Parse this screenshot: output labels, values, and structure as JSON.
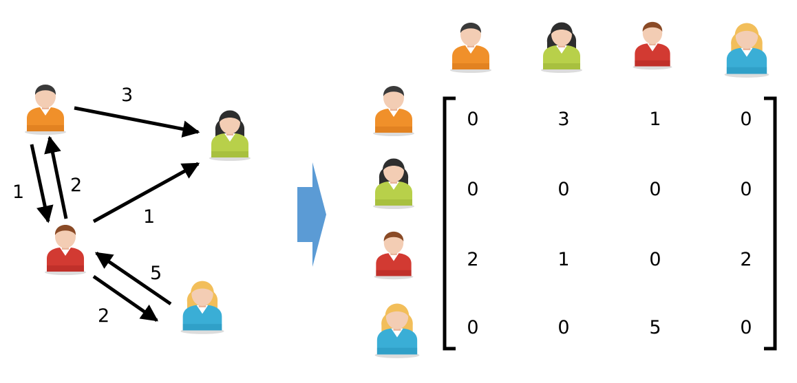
{
  "people": [
    {
      "id": "orange",
      "shirt": "#f0902a",
      "shirt_dark": "#c96a12",
      "hair": "#3a3a3a",
      "hair_style": "short",
      "icon": "orange-person-icon"
    },
    {
      "id": "green",
      "shirt": "#b8d04a",
      "shirt_dark": "#8aa22a",
      "hair": "#2e2e2e",
      "hair_style": "long",
      "icon": "green-person-icon"
    },
    {
      "id": "red",
      "shirt": "#d23a32",
      "shirt_dark": "#a0201c",
      "hair": "#8a4a26",
      "hair_style": "short",
      "icon": "red-person-icon"
    },
    {
      "id": "blue",
      "shirt": "#3aaed6",
      "shirt_dark": "#1f86ae",
      "hair": "#f2be5a",
      "hair_style": "blonde",
      "icon": "blue-person-icon"
    }
  ],
  "graph": {
    "edges": [
      {
        "from": "orange",
        "to": "green",
        "weight": "3"
      },
      {
        "from": "orange",
        "to": "red",
        "weight": "1"
      },
      {
        "from": "red",
        "to": "orange",
        "weight": "2"
      },
      {
        "from": "red",
        "to": "green",
        "weight": "1"
      },
      {
        "from": "blue",
        "to": "red",
        "weight": "5"
      },
      {
        "from": "red",
        "to": "blue",
        "weight": "2"
      }
    ]
  },
  "transform_arrow": {
    "color": "#5b9bd5",
    "icon": "right-arrow-icon"
  },
  "matrix": {
    "rows": [
      [
        "0",
        "3",
        "1",
        "0"
      ],
      [
        "0",
        "0",
        "0",
        "0"
      ],
      [
        "2",
        "1",
        "0",
        "2"
      ],
      [
        "0",
        "0",
        "5",
        "0"
      ]
    ]
  }
}
